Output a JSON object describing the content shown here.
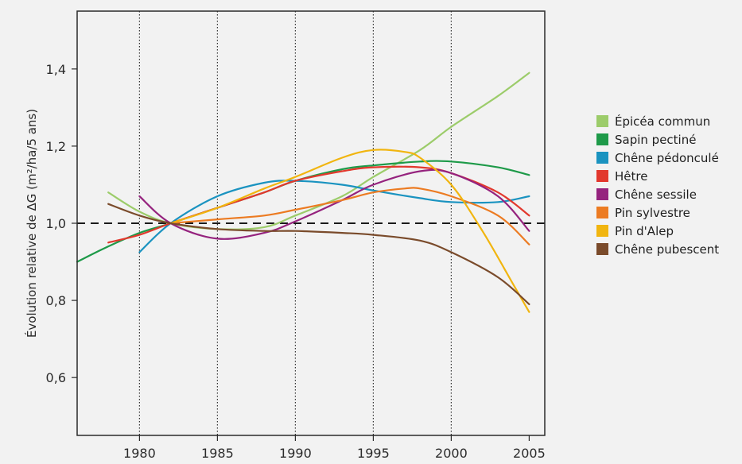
{
  "chart_data": {
    "type": "line",
    "ylabel": "Évolution relative de ΔG (m²/ha/5 ans)",
    "xlabel": "",
    "xlim": [
      1976,
      2006
    ],
    "ylim": [
      0.45,
      1.55
    ],
    "x_ticks": [
      "1980",
      "1985",
      "1990",
      "1995",
      "2000",
      "2005"
    ],
    "y_ticks": [
      "0,6",
      "0,8",
      "1,0",
      "1,2",
      "1,4"
    ],
    "vertical_gridlines_at": [
      1980,
      1985,
      1990,
      1995,
      2000
    ],
    "reference_line": {
      "y": 1.0,
      "style": "dashed"
    },
    "legend_position": "right",
    "series": [
      {
        "name": "Épicéa commun",
        "color": "#9ccc6a",
        "x": [
          1978,
          1980,
          1982,
          1985,
          1988,
          1990,
          1993,
          1995,
          1998,
          2000,
          2003,
          2005
        ],
        "y": [
          1.08,
          1.03,
          1.0,
          0.985,
          0.99,
          1.02,
          1.07,
          1.12,
          1.19,
          1.25,
          1.33,
          1.39
        ]
      },
      {
        "name": "Sapin pectiné",
        "color": "#1e9a49",
        "x": [
          1976,
          1978,
          1980,
          1982,
          1985,
          1988,
          1990,
          1993,
          1995,
          1998,
          2000,
          2003,
          2005
        ],
        "y": [
          0.9,
          0.94,
          0.975,
          1.0,
          1.04,
          1.08,
          1.11,
          1.14,
          1.15,
          1.16,
          1.16,
          1.145,
          1.125
        ]
      },
      {
        "name": "Chêne pédonculé",
        "color": "#1a93c0",
        "x": [
          1980,
          1982,
          1985,
          1988,
          1990,
          1993,
          1995,
          1998,
          2000,
          2003,
          2005
        ],
        "y": [
          0.925,
          1.0,
          1.07,
          1.105,
          1.11,
          1.1,
          1.085,
          1.065,
          1.055,
          1.055,
          1.07
        ]
      },
      {
        "name": "Hêtre",
        "color": "#e2382d",
        "x": [
          1978,
          1980,
          1982,
          1985,
          1988,
          1990,
          1993,
          1995,
          1998,
          2000,
          2003,
          2005
        ],
        "y": [
          0.95,
          0.97,
          1.0,
          1.04,
          1.08,
          1.11,
          1.135,
          1.145,
          1.145,
          1.13,
          1.08,
          1.02
        ]
      },
      {
        "name": "Chêne sessile",
        "color": "#95237e",
        "x": [
          1980,
          1982,
          1985,
          1988,
          1990,
          1993,
          1995,
          1998,
          2000,
          2003,
          2005
        ],
        "y": [
          1.07,
          1.0,
          0.96,
          0.975,
          1.005,
          1.06,
          1.1,
          1.135,
          1.13,
          1.07,
          0.98
        ]
      },
      {
        "name": "Pin sylvestre",
        "color": "#ec7b22",
        "x": [
          1982,
          1985,
          1988,
          1990,
          1993,
          1995,
          1997,
          1998,
          2000,
          2003,
          2005
        ],
        "y": [
          1.0,
          1.01,
          1.02,
          1.035,
          1.06,
          1.08,
          1.09,
          1.09,
          1.07,
          1.02,
          0.945
        ]
      },
      {
        "name": "Pin d'Alep",
        "color": "#f1b50f",
        "x": [
          1982,
          1985,
          1988,
          1990,
          1993,
          1995,
          1997,
          1998,
          2000,
          2002,
          2004,
          2005
        ],
        "y": [
          1.0,
          1.04,
          1.09,
          1.12,
          1.17,
          1.19,
          1.185,
          1.17,
          1.1,
          0.98,
          0.84,
          0.77
        ]
      },
      {
        "name": "Chêne pubescent",
        "color": "#7a4b2b",
        "x": [
          1978,
          1980,
          1982,
          1985,
          1988,
          1990,
          1993,
          1995,
          1998,
          2000,
          2003,
          2005
        ],
        "y": [
          1.05,
          1.02,
          1.0,
          0.985,
          0.98,
          0.98,
          0.975,
          0.97,
          0.955,
          0.925,
          0.86,
          0.79
        ]
      }
    ]
  }
}
